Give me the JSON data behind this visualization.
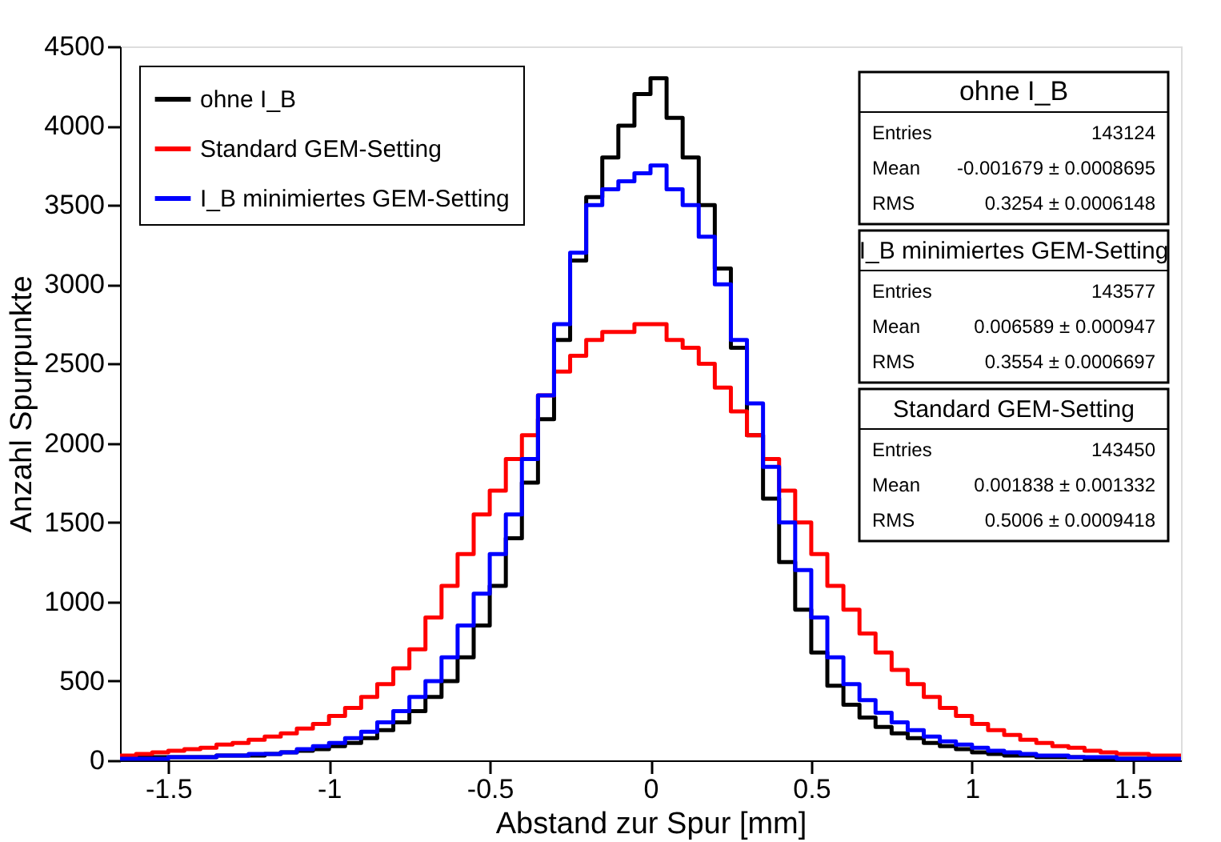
{
  "chart_data": {
    "type": "histogram",
    "xlabel": "Abstand zur Spur [mm]",
    "ylabel": "Anzahl Spurpunkte",
    "bins": [
      -1.65,
      -1.6,
      -1.55,
      -1.5,
      -1.45,
      -1.4,
      -1.35,
      -1.3,
      -1.25,
      -1.2,
      -1.15,
      -1.1,
      -1.05,
      -1.0,
      -0.95,
      -0.9,
      -0.85,
      -0.8,
      -0.75,
      -0.7,
      -0.65,
      -0.6,
      -0.55,
      -0.5,
      -0.45,
      -0.4,
      -0.35,
      -0.3,
      -0.25,
      -0.2,
      -0.15,
      -0.1,
      -0.05,
      0.0,
      0.05,
      0.1,
      0.15,
      0.2,
      0.25,
      0.3,
      0.35,
      0.4,
      0.45,
      0.5,
      0.55,
      0.6,
      0.65,
      0.7,
      0.75,
      0.8,
      0.85,
      0.9,
      0.95,
      1.0,
      1.05,
      1.1,
      1.15,
      1.2,
      1.25,
      1.3,
      1.35,
      1.4,
      1.45,
      1.5,
      1.55,
      1.6,
      1.65
    ],
    "series": [
      {
        "name": "ohne I_B",
        "color": "#000000",
        "values": [
          20,
          20,
          20,
          20,
          20,
          20,
          30,
          30,
          30,
          40,
          50,
          60,
          70,
          90,
          110,
          140,
          190,
          240,
          310,
          400,
          500,
          650,
          850,
          1100,
          1400,
          1750,
          2150,
          2650,
          3150,
          3550,
          3800,
          4000,
          4200,
          4300,
          4050,
          3800,
          3500,
          3100,
          2600,
          2050,
          1650,
          1250,
          950,
          680,
          470,
          350,
          270,
          210,
          170,
          140,
          110,
          90,
          70,
          50,
          40,
          30,
          30,
          20,
          20,
          20,
          10,
          10,
          10,
          10,
          10,
          10
        ]
      },
      {
        "name": "Standard GEM-Setting",
        "color": "#ff0000",
        "values": [
          30,
          40,
          50,
          60,
          70,
          80,
          100,
          110,
          130,
          150,
          170,
          200,
          230,
          280,
          330,
          400,
          480,
          580,
          700,
          900,
          1100,
          1300,
          1550,
          1700,
          1900,
          2050,
          2300,
          2450,
          2550,
          2650,
          2700,
          2700,
          2750,
          2750,
          2650,
          2600,
          2500,
          2350,
          2200,
          2050,
          1900,
          1700,
          1500,
          1300,
          1100,
          950,
          800,
          680,
          570,
          480,
          400,
          330,
          280,
          230,
          190,
          160,
          130,
          110,
          90,
          80,
          60,
          50,
          40,
          40,
          30,
          30
        ]
      },
      {
        "name": "I_B minimiertes GEM-Setting",
        "color": "#0000ff",
        "values": [
          10,
          10,
          10,
          20,
          20,
          20,
          30,
          30,
          40,
          40,
          50,
          70,
          90,
          110,
          140,
          180,
          240,
          310,
          400,
          500,
          650,
          850,
          1050,
          1300,
          1550,
          1900,
          2300,
          2750,
          3200,
          3500,
          3600,
          3650,
          3700,
          3750,
          3600,
          3500,
          3300,
          3000,
          2650,
          2250,
          1850,
          1500,
          1200,
          900,
          650,
          480,
          380,
          300,
          240,
          190,
          150,
          120,
          100,
          80,
          60,
          50,
          40,
          30,
          30,
          20,
          20,
          20,
          10,
          10,
          10,
          10
        ]
      }
    ],
    "xlim": [
      -1.65,
      1.65
    ],
    "ylim": [
      0,
      4500
    ],
    "xticks": [
      -1.5,
      -1,
      -0.5,
      0,
      0.5,
      1,
      1.5
    ],
    "yticks": [
      0,
      500,
      1000,
      1500,
      2000,
      2500,
      3000,
      3500,
      4000,
      4500
    ],
    "legend": "top left",
    "annotations": [
      "ohne I_B",
      "Entries 143124",
      "Mean -0.001679 ± 0.0008695",
      "RMS 0.3254 ± 0.0006148",
      "I_B minimiertes GEM-Setting",
      "Entries 143577",
      "Mean 0.006589 ± 0.000947",
      "RMS 0.3554 ± 0.0006697",
      "Standard GEM-Setting",
      "Entries 143450",
      "Mean 0.001838 ± 0.001332",
      "RMS 0.5006 ± 0.0009418"
    ]
  }
}
